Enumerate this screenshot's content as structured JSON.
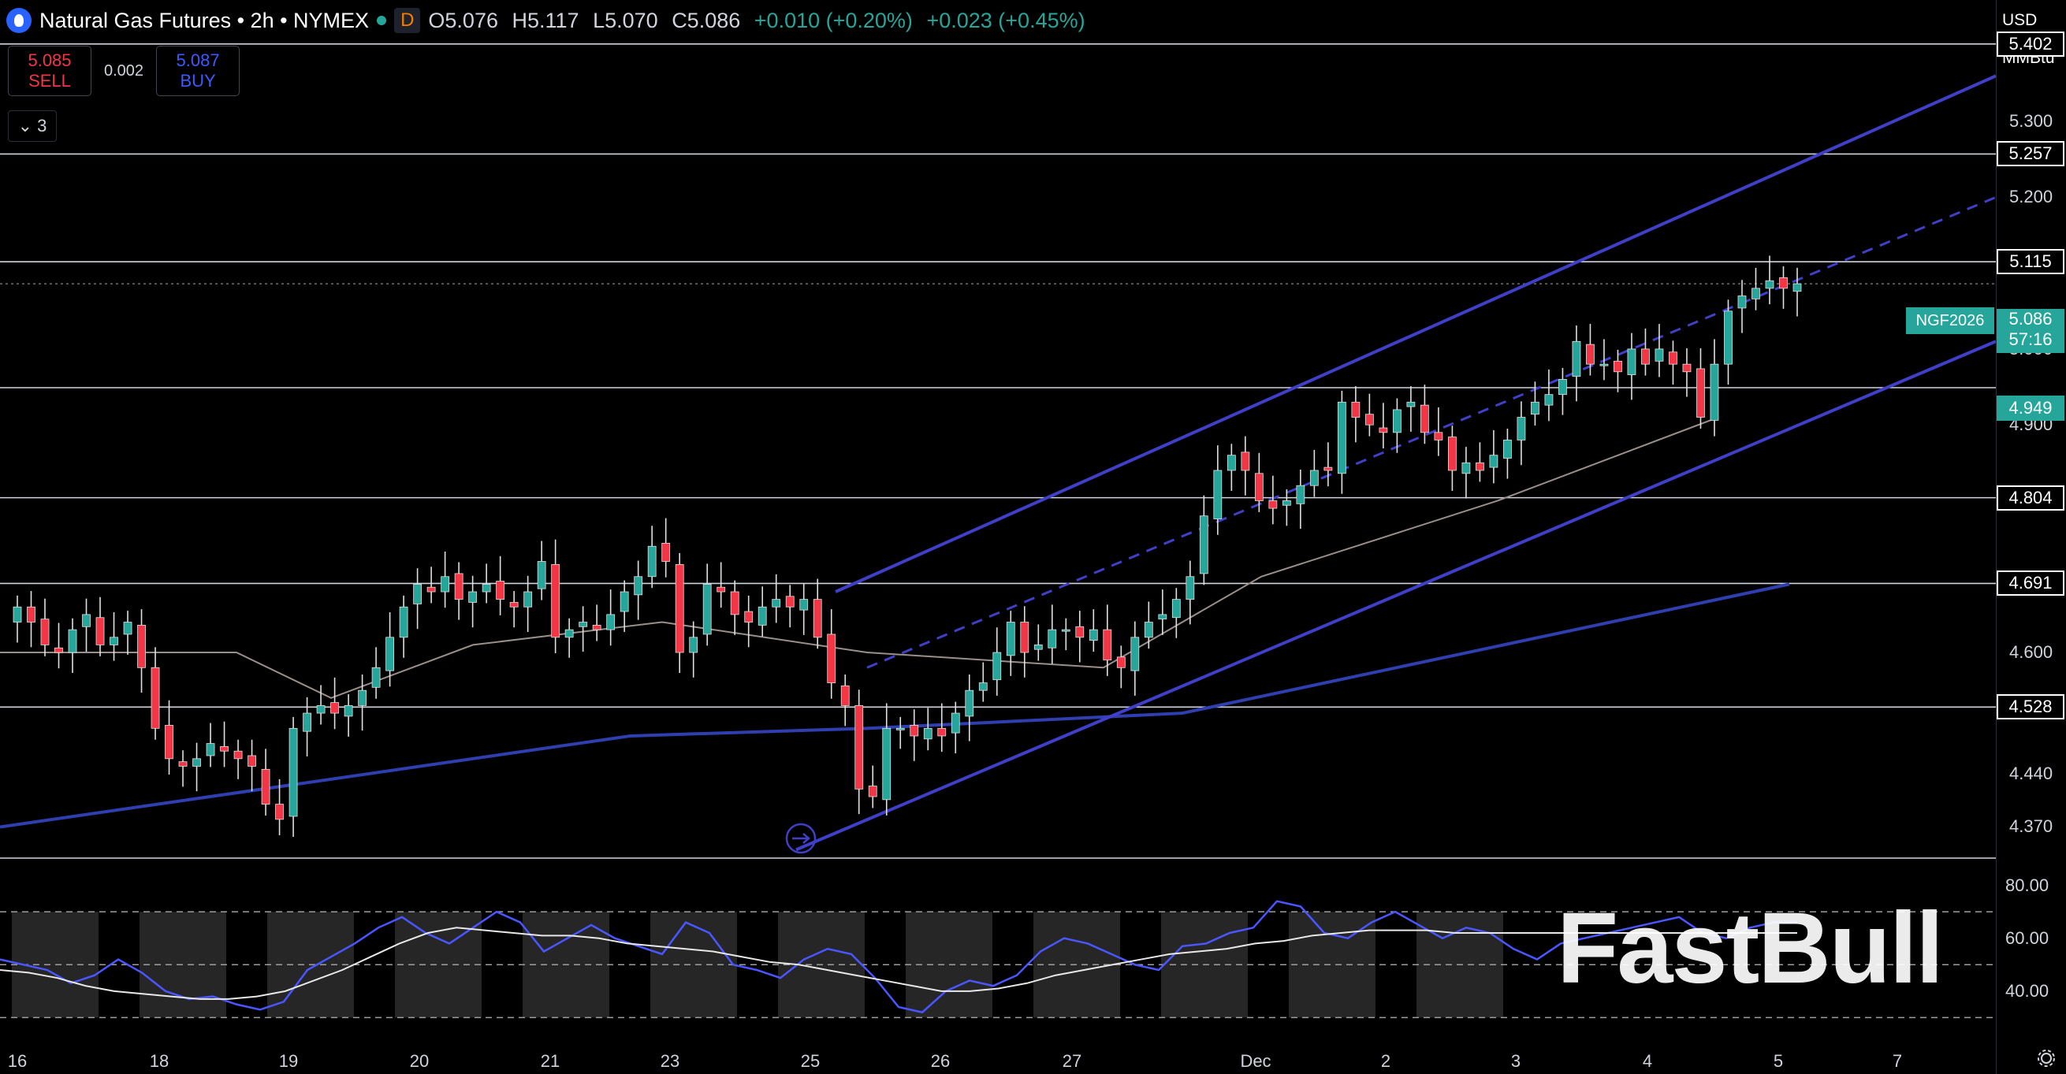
{
  "header": {
    "title": "Natural Gas Futures • 2h • NYMEX",
    "interval_badge": "D",
    "open": "O5.076",
    "high": "H5.117",
    "low": "L5.070",
    "close": "C5.086",
    "change": "+0.010 (+0.20%)",
    "change2": "+0.023 (+0.45%)"
  },
  "trade": {
    "sell_price": "5.085",
    "sell_label": "SELL",
    "spread": "0.002",
    "buy_price": "5.087",
    "buy_label": "BUY"
  },
  "indicators_count": "3",
  "axis": {
    "currency": "USD",
    "unit": "MMBtu",
    "ticks": [
      "5.300",
      "5.200",
      "5.000",
      "4.900",
      "4.600",
      "4.440",
      "4.370"
    ],
    "level_boxes": [
      "5.402",
      "5.257",
      "5.115",
      "4.804",
      "4.691",
      "4.528"
    ],
    "current_price": "5.086",
    "countdown": "57:16",
    "green_level": "4.949",
    "symbol": "NGF2026",
    "rsi_ticks": [
      "80.00",
      "60.00",
      "40.00"
    ]
  },
  "x_labels": [
    "16",
    "18",
    "19",
    "20",
    "21",
    "23",
    "25",
    "26",
    "27",
    "Dec",
    "2",
    "3",
    "4",
    "5",
    "7"
  ],
  "watermark": "FastBull",
  "colors": {
    "up": "#26a69a",
    "down": "#f23645",
    "channel": "#3f3fc8",
    "ma": "#2f3fb0",
    "rsi": "#4a56ff"
  },
  "chart_data": {
    "type": "candlestick",
    "title": "Natural Gas Futures • 2h • NYMEX",
    "ylim": [
      4.33,
      5.46
    ],
    "x_ticks": [
      "16",
      "18",
      "19",
      "20",
      "21",
      "23",
      "25",
      "26",
      "27",
      "Dec",
      "2",
      "3",
      "4",
      "5",
      "7"
    ],
    "horizontal_levels": [
      5.402,
      5.257,
      5.115,
      4.949,
      4.804,
      4.691,
      4.528
    ],
    "last_price": 5.086,
    "closes": [
      4.66,
      4.64,
      4.61,
      4.6,
      4.63,
      4.65,
      4.61,
      4.62,
      4.64,
      4.58,
      4.5,
      4.46,
      4.45,
      4.46,
      4.48,
      4.47,
      4.46,
      4.45,
      4.4,
      4.38,
      4.5,
      4.52,
      4.53,
      4.52,
      4.53,
      4.55,
      4.58,
      4.62,
      4.66,
      4.69,
      4.68,
      4.7,
      4.67,
      4.68,
      4.69,
      4.67,
      4.66,
      4.68,
      4.72,
      4.62,
      4.63,
      4.64,
      4.63,
      4.65,
      4.68,
      4.7,
      4.74,
      4.72,
      4.6,
      4.62,
      4.69,
      4.68,
      4.65,
      4.64,
      4.66,
      4.67,
      4.66,
      4.67,
      4.62,
      4.56,
      4.53,
      4.42,
      4.41,
      4.5,
      4.5,
      4.49,
      4.5,
      4.49,
      4.52,
      4.55,
      4.56,
      4.6,
      4.64,
      4.6,
      4.61,
      4.63,
      4.63,
      4.62,
      4.63,
      4.59,
      4.58,
      4.62,
      4.64,
      4.65,
      4.67,
      4.7,
      4.78,
      4.84,
      4.86,
      4.84,
      4.8,
      4.79,
      4.8,
      4.82,
      4.84,
      4.84,
      4.93,
      4.91,
      4.9,
      4.89,
      4.92,
      4.93,
      4.89,
      4.88,
      4.84,
      4.85,
      4.84,
      4.86,
      4.88,
      4.91,
      4.93,
      4.94,
      4.96,
      5.01,
      4.98,
      4.98,
      4.97,
      5.0,
      4.98,
      5.0,
      4.98,
      4.97,
      4.91,
      4.98,
      5.05,
      5.07,
      5.08,
      5.09,
      5.08,
      5.086
    ],
    "moving_average_blue": [
      [
        0,
        4.37
      ],
      [
        800,
        4.49
      ],
      [
        1100,
        4.5
      ],
      [
        1500,
        4.52
      ],
      [
        2270,
        4.69
      ]
    ],
    "moving_average_grey": [
      [
        0,
        4.6
      ],
      [
        300,
        4.6
      ],
      [
        420,
        4.54
      ],
      [
        600,
        4.61
      ],
      [
        840,
        4.64
      ],
      [
        1100,
        4.6
      ],
      [
        1400,
        4.58
      ],
      [
        1600,
        4.7
      ],
      [
        1900,
        4.8
      ],
      [
        2180,
        4.91
      ]
    ],
    "channel_upper": [
      [
        1060,
        4.68
      ],
      [
        2532,
        5.36
      ]
    ],
    "channel_lower": [
      [
        1010,
        4.34
      ],
      [
        2532,
        5.01
      ]
    ],
    "channel_mid": [
      [
        1100,
        4.58
      ],
      [
        2532,
        5.2
      ]
    ],
    "rsi_ticks": [
      80,
      60,
      40
    ],
    "rsi": [
      52,
      50,
      48,
      43,
      46,
      52,
      47,
      40,
      37,
      38,
      35,
      33,
      36,
      48,
      53,
      58,
      64,
      68,
      62,
      58,
      64,
      70,
      66,
      55,
      60,
      65,
      60,
      57,
      54,
      66,
      62,
      50,
      48,
      45,
      52,
      56,
      54,
      45,
      34,
      32,
      40,
      44,
      42,
      46,
      55,
      60,
      58,
      54,
      50,
      48,
      57,
      58,
      62,
      64,
      74,
      72,
      62,
      60,
      66,
      70,
      65,
      60,
      64,
      62,
      56,
      52,
      58,
      60,
      62,
      64,
      66,
      68,
      62,
      60,
      64,
      66,
      66
    ],
    "rsi_signal": [
      48,
      47,
      45,
      42,
      40,
      39,
      38,
      37,
      37,
      38,
      40,
      44,
      48,
      53,
      58,
      62,
      64,
      63,
      62,
      61,
      61,
      60,
      58,
      57,
      56,
      55,
      53,
      51,
      50,
      48,
      46,
      44,
      42,
      40,
      40,
      41,
      43,
      46,
      48,
      50,
      52,
      54,
      55,
      56,
      58,
      59,
      61,
      62,
      63,
      63,
      63,
      62,
      62,
      62,
      62,
      62,
      62,
      62,
      62,
      62,
      62,
      62,
      62,
      62
    ]
  }
}
